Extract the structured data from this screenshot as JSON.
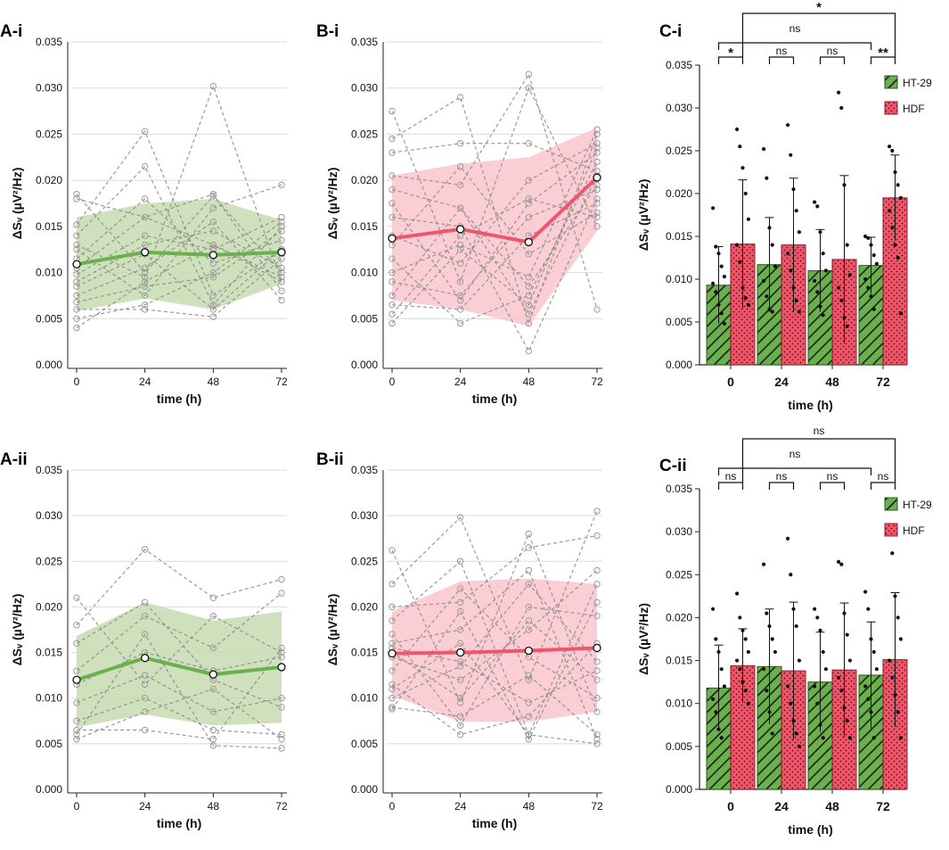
{
  "figure": {
    "colors": {
      "green": "#6ab04c",
      "green_dark": "#2f5a1c",
      "red": "#f0566a",
      "red_dark": "#8a1f2c",
      "grey": "#888888",
      "grid": "#d9d9d9",
      "green_band": "#c7dcb0",
      "red_band": "#f9c6cc"
    }
  },
  "chart_data": [
    {
      "id": "A-i",
      "panel_label": "A-i",
      "type": "line",
      "xlabel": "time (h)",
      "ylabel": "ΔSᵥ (µV²/Hz)",
      "x": [
        0,
        24,
        48,
        72
      ],
      "ylim": [
        0,
        0.035
      ],
      "yticks": [
        "0.000",
        "0.005",
        "0.010",
        "0.015",
        "0.020",
        "0.025",
        "0.030",
        "0.035"
      ],
      "xticks": [
        "0",
        "24",
        "48",
        "72"
      ],
      "series_color": "green",
      "mean": [
        0.0109,
        0.0122,
        0.0119,
        0.0122
      ],
      "band_upper": [
        0.016,
        0.0175,
        0.018,
        0.0157
      ],
      "band_lower": [
        0.0058,
        0.0072,
        0.006,
        0.0088
      ],
      "individual": [
        [
          0.0185,
          0.01,
          0.0183,
          0.01
        ],
        [
          0.018,
          0.016,
          0.013,
          0.009
        ],
        [
          0.0152,
          0.0253,
          0.0075,
          0.0125
        ],
        [
          0.014,
          0.0215,
          0.0065,
          0.015
        ],
        [
          0.013,
          0.0095,
          0.0302,
          0.009
        ],
        [
          0.0125,
          0.0075,
          0.017,
          0.0195
        ],
        [
          0.0115,
          0.018,
          0.011,
          0.0135
        ],
        [
          0.0105,
          0.016,
          0.0185,
          0.008
        ],
        [
          0.0098,
          0.014,
          0.0125,
          0.016
        ],
        [
          0.009,
          0.013,
          0.0145,
          0.0105
        ],
        [
          0.0085,
          0.012,
          0.006,
          0.0125
        ],
        [
          0.0075,
          0.0105,
          0.0155,
          0.007
        ],
        [
          0.0068,
          0.0085,
          0.0095,
          0.0145
        ],
        [
          0.006,
          0.006,
          0.0052,
          0.0115
        ],
        [
          0.005,
          0.0065,
          0.01,
          0.0155
        ],
        [
          0.004,
          0.009,
          0.013,
          0.0095
        ]
      ]
    },
    {
      "id": "B-i",
      "panel_label": "B-i",
      "type": "line",
      "xlabel": "time (h)",
      "ylabel": "ΔSᵥ (µV²/Hz)",
      "x": [
        0,
        24,
        48,
        72
      ],
      "ylim": [
        0,
        0.035
      ],
      "yticks": [
        "0.000",
        "0.005",
        "0.010",
        "0.015",
        "0.020",
        "0.025",
        "0.030",
        "0.035"
      ],
      "xticks": [
        "0",
        "24",
        "48",
        "72"
      ],
      "series_color": "red",
      "mean": [
        0.0137,
        0.0147,
        0.0133,
        0.0203
      ],
      "band_upper": [
        0.0205,
        0.0218,
        0.0225,
        0.0257
      ],
      "band_lower": [
        0.007,
        0.006,
        0.0042,
        0.0145
      ],
      "individual": [
        [
          0.0275,
          0.009,
          0.03,
          0.015
        ],
        [
          0.0245,
          0.029,
          0.0045,
          0.025
        ],
        [
          0.023,
          0.024,
          0.024,
          0.021
        ],
        [
          0.0205,
          0.0195,
          0.0315,
          0.006
        ],
        [
          0.019,
          0.017,
          0.0085,
          0.0195
        ],
        [
          0.0175,
          0.007,
          0.0175,
          0.023
        ],
        [
          0.016,
          0.015,
          0.0015,
          0.018
        ],
        [
          0.014,
          0.011,
          0.02,
          0.024
        ],
        [
          0.013,
          0.0215,
          0.012,
          0.0165
        ],
        [
          0.0115,
          0.0045,
          0.0075,
          0.022
        ],
        [
          0.01,
          0.013,
          0.0095,
          0.0255
        ],
        [
          0.009,
          0.0075,
          0.016,
          0.019
        ],
        [
          0.0075,
          0.017,
          0.0055,
          0.0205
        ],
        [
          0.0065,
          0.006,
          0.014,
          0.0175
        ],
        [
          0.0055,
          0.014,
          0.018,
          0.016
        ],
        [
          0.0045,
          0.0125,
          0.0065,
          0.0235
        ]
      ]
    },
    {
      "id": "C-i",
      "panel_label": "C-i",
      "type": "bar",
      "xlabel": "time (h)",
      "ylabel": "ΔSᵥ (µV²/Hz)",
      "categories": [
        "0",
        "24",
        "48",
        "72"
      ],
      "ylim": [
        0,
        0.035
      ],
      "yticks": [
        "0.000",
        "0.005",
        "0.010",
        "0.015",
        "0.020",
        "0.025",
        "0.030",
        "0.035"
      ],
      "legend": [
        "HT-29",
        "HDF"
      ],
      "series": [
        {
          "name": "HT-29",
          "color": "green",
          "values": [
            0.0093,
            0.0117,
            0.011,
            0.0116
          ],
          "sd": [
            0.0045,
            0.0055,
            0.0048,
            0.0033
          ],
          "points": [
            [
              0.0183,
              0.0138,
              0.013,
              0.0115,
              0.0103,
              0.0095,
              0.0085,
              0.007,
              0.006,
              0.0048
            ],
            [
              0.0252,
              0.0218,
              0.016,
              0.014,
              0.0115,
              0.0098,
              0.008,
              0.0065,
              0.0062
            ],
            [
              0.019,
              0.0185,
              0.0155,
              0.013,
              0.011,
              0.0098,
              0.0085,
              0.0068,
              0.0058
            ],
            [
              0.015,
              0.0148,
              0.014,
              0.0128,
              0.0118,
              0.01,
              0.009,
              0.008,
              0.0065
            ]
          ]
        },
        {
          "name": "HDF",
          "color": "red",
          "values": [
            0.0141,
            0.014,
            0.0123,
            0.0195
          ],
          "sd": [
            0.0075,
            0.0078,
            0.0098,
            0.005
          ],
          "points": [
            [
              0.0275,
              0.0255,
              0.023,
              0.02,
              0.017,
              0.014,
              0.012,
              0.009,
              0.0078,
              0.007
            ],
            [
              0.028,
              0.0245,
              0.0205,
              0.018,
              0.0155,
              0.013,
              0.011,
              0.009,
              0.0075,
              0.0062
            ],
            [
              0.0318,
              0.03,
              0.021,
              0.014,
              0.0105,
              0.009,
              0.0075,
              0.0055,
              0.0045
            ],
            [
              0.0255,
              0.025,
              0.0225,
              0.021,
              0.0195,
              0.018,
              0.016,
              0.014,
              0.0125,
              0.006
            ]
          ]
        }
      ],
      "brackets": [
        {
          "from": "0:HT-29",
          "to": "0:HDF",
          "label": "*",
          "level": 0
        },
        {
          "from": "24:HT-29",
          "to": "24:HDF",
          "label": "ns",
          "level": 0
        },
        {
          "from": "48:HT-29",
          "to": "48:HDF",
          "label": "ns",
          "level": 0
        },
        {
          "from": "72:HT-29",
          "to": "72:HDF",
          "label": "**",
          "level": 0
        },
        {
          "from": "0:HT-29",
          "to": "72:HT-29",
          "label": "ns",
          "level": 1
        },
        {
          "from": "0:HDF",
          "to": "72:HDF",
          "label": "*",
          "level": 2
        }
      ]
    },
    {
      "id": "A-ii",
      "panel_label": "A-ii",
      "type": "line",
      "xlabel": "time (h)",
      "ylabel": "ΔSᵥ (µV²/Hz)",
      "x": [
        0,
        24,
        48,
        72
      ],
      "ylim": [
        0,
        0.035
      ],
      "yticks": [
        "0.000",
        "0.005",
        "0.010",
        "0.015",
        "0.020",
        "0.025",
        "0.030",
        "0.035"
      ],
      "xticks": [
        "0",
        "24",
        "48",
        "72"
      ],
      "series_color": "green",
      "mean": [
        0.012,
        0.0144,
        0.0126,
        0.0134
      ],
      "band_upper": [
        0.0168,
        0.0205,
        0.0185,
        0.0195
      ],
      "band_lower": [
        0.0068,
        0.0082,
        0.007,
        0.0073
      ],
      "individual": [
        [
          0.021,
          0.0115,
          0.019,
          0.015
        ],
        [
          0.018,
          0.0263,
          0.021,
          0.023
        ],
        [
          0.016,
          0.0205,
          0.012,
          0.009
        ],
        [
          0.013,
          0.019,
          0.0155,
          0.0215
        ],
        [
          0.0115,
          0.015,
          0.013,
          0.0145
        ],
        [
          0.0095,
          0.0125,
          0.0085,
          0.01
        ],
        [
          0.0075,
          0.01,
          0.0065,
          0.006
        ],
        [
          0.0065,
          0.0065,
          0.0055,
          0.0155
        ],
        [
          0.006,
          0.017,
          0.0048,
          0.0045
        ],
        [
          0.0055,
          0.0085,
          0.011,
          0.0055
        ]
      ]
    },
    {
      "id": "B-ii",
      "panel_label": "B-ii",
      "type": "line",
      "xlabel": "time (h)",
      "ylabel": "ΔSᵥ (µV²/Hz)",
      "x": [
        0,
        24,
        48,
        72
      ],
      "ylim": [
        0,
        0.035
      ],
      "yticks": [
        "0.000",
        "0.005",
        "0.010",
        "0.015",
        "0.020",
        "0.025",
        "0.030",
        "0.035"
      ],
      "xticks": [
        "0",
        "24",
        "48",
        "72"
      ],
      "series_color": "red",
      "mean": [
        0.0149,
        0.015,
        0.0152,
        0.0155
      ],
      "band_upper": [
        0.0195,
        0.0228,
        0.0231,
        0.0225
      ],
      "band_lower": [
        0.0103,
        0.0074,
        0.0074,
        0.0085
      ],
      "individual": [
        [
          0.0262,
          0.0095,
          0.028,
          0.0085
        ],
        [
          0.0225,
          0.0298,
          0.012,
          0.0305
        ],
        [
          0.02,
          0.0205,
          0.0265,
          0.0278
        ],
        [
          0.0185,
          0.025,
          0.006,
          0.0225
        ],
        [
          0.017,
          0.007,
          0.02,
          0.019
        ],
        [
          0.016,
          0.0175,
          0.024,
          0.0055
        ],
        [
          0.0155,
          0.014,
          0.0095,
          0.013
        ],
        [
          0.0145,
          0.012,
          0.0175,
          0.024
        ],
        [
          0.013,
          0.022,
          0.0145,
          0.01
        ],
        [
          0.0115,
          0.006,
          0.008,
          0.016
        ],
        [
          0.01,
          0.0135,
          0.0225,
          0.014
        ],
        [
          0.009,
          0.008,
          0.0125,
          0.006
        ],
        [
          0.0088,
          0.0195,
          0.0055,
          0.0205
        ],
        [
          0.015,
          0.01,
          0.0185,
          0.012
        ],
        [
          0.011,
          0.016,
          0.006,
          0.005
        ]
      ]
    },
    {
      "id": "C-ii",
      "panel_label": "C-ii",
      "type": "bar",
      "xlabel": "time (h)",
      "ylabel": "ΔSᵥ (µV²/Hz)",
      "categories": [
        "0",
        "24",
        "48",
        "72"
      ],
      "ylim": [
        0,
        0.035
      ],
      "yticks": [
        "0.000",
        "0.005",
        "0.010",
        "0.015",
        "0.020",
        "0.025",
        "0.030",
        "0.035"
      ],
      "legend": [
        "HT-29",
        "HDF"
      ],
      "series": [
        {
          "name": "HT-29",
          "color": "green",
          "values": [
            0.0118,
            0.0143,
            0.0125,
            0.0133
          ],
          "sd": [
            0.005,
            0.0067,
            0.0058,
            0.0062
          ],
          "points": [
            [
              0.021,
              0.0175,
              0.016,
              0.014,
              0.012,
              0.0105,
              0.009,
              0.007,
              0.006
            ],
            [
              0.0262,
              0.0205,
              0.019,
              0.0175,
              0.016,
              0.014,
              0.0115,
              0.009,
              0.0065
            ],
            [
              0.021,
              0.02,
              0.0185,
              0.016,
              0.014,
              0.012,
              0.01,
              0.0075,
              0.006
            ],
            [
              0.023,
              0.021,
              0.0175,
              0.016,
              0.014,
              0.012,
              0.0105,
              0.009,
              0.006
            ]
          ]
        },
        {
          "name": "HDF",
          "color": "red",
          "values": [
            0.0144,
            0.0138,
            0.0139,
            0.0151
          ],
          "sd": [
            0.0043,
            0.008,
            0.0078,
            0.0078
          ],
          "points": [
            [
              0.0228,
              0.02,
              0.0185,
              0.0175,
              0.016,
              0.015,
              0.014,
              0.0125,
              0.0115,
              0.01
            ],
            [
              0.0292,
              0.025,
              0.021,
              0.019,
              0.015,
              0.012,
              0.01,
              0.008,
              0.0065,
              0.005
            ],
            [
              0.0265,
              0.0262,
              0.0205,
              0.018,
              0.015,
              0.013,
              0.0115,
              0.0095,
              0.008,
              0.006
            ],
            [
              0.0305,
              0.0275,
              0.0225,
              0.02,
              0.0175,
              0.015,
              0.013,
              0.011,
              0.009,
              0.006
            ]
          ]
        }
      ],
      "brackets": [
        {
          "from": "0:HT-29",
          "to": "0:HDF",
          "label": "ns",
          "level": 0
        },
        {
          "from": "24:HT-29",
          "to": "24:HDF",
          "label": "ns",
          "level": 0
        },
        {
          "from": "48:HT-29",
          "to": "48:HDF",
          "label": "ns",
          "level": 0
        },
        {
          "from": "72:HT-29",
          "to": "72:HDF",
          "label": "ns",
          "level": 0
        },
        {
          "from": "0:HT-29",
          "to": "72:HT-29",
          "label": "ns",
          "level": 1
        },
        {
          "from": "0:HDF",
          "to": "72:HDF",
          "label": "ns",
          "level": 2
        }
      ]
    }
  ]
}
